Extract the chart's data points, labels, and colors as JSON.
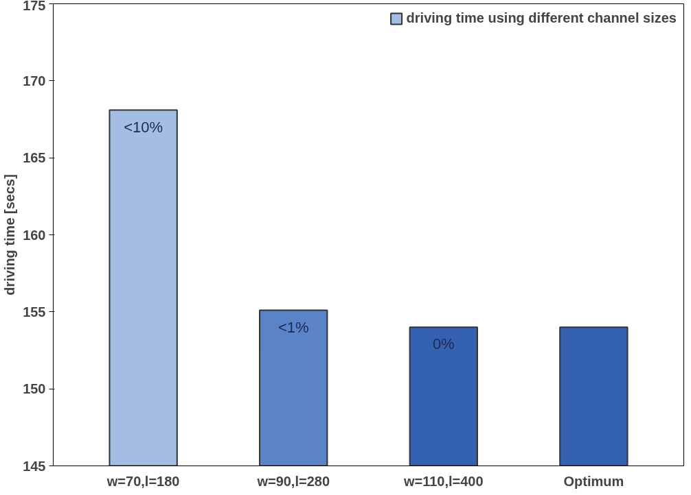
{
  "chart_data": {
    "type": "bar",
    "ylabel": "driving time [secs]",
    "categories": [
      "w=70,l=180",
      "w=90,l=280",
      "w=110,l=400",
      "Optimum"
    ],
    "series": [
      {
        "name": "driving time using different channel sizes",
        "colors": [
          "#a3bde3",
          "#5b84c8",
          "#3462b0",
          "#3462b0"
        ],
        "values": [
          168.1,
          155.1,
          154.0,
          154.0
        ]
      }
    ],
    "annotations": [
      {
        "text": "<10%",
        "x": "w=70,l=180",
        "y": 168.1
      },
      {
        "text": "<1%",
        "x": "w=90,l=280",
        "y": 155.1
      },
      {
        "text": "0%",
        "x": "w=110,l=400",
        "y": 154.0
      }
    ],
    "ylim": [
      145,
      175
    ],
    "yticks": [
      145,
      150,
      155,
      160,
      165,
      170,
      175
    ],
    "grid": false,
    "legend": "top right"
  }
}
